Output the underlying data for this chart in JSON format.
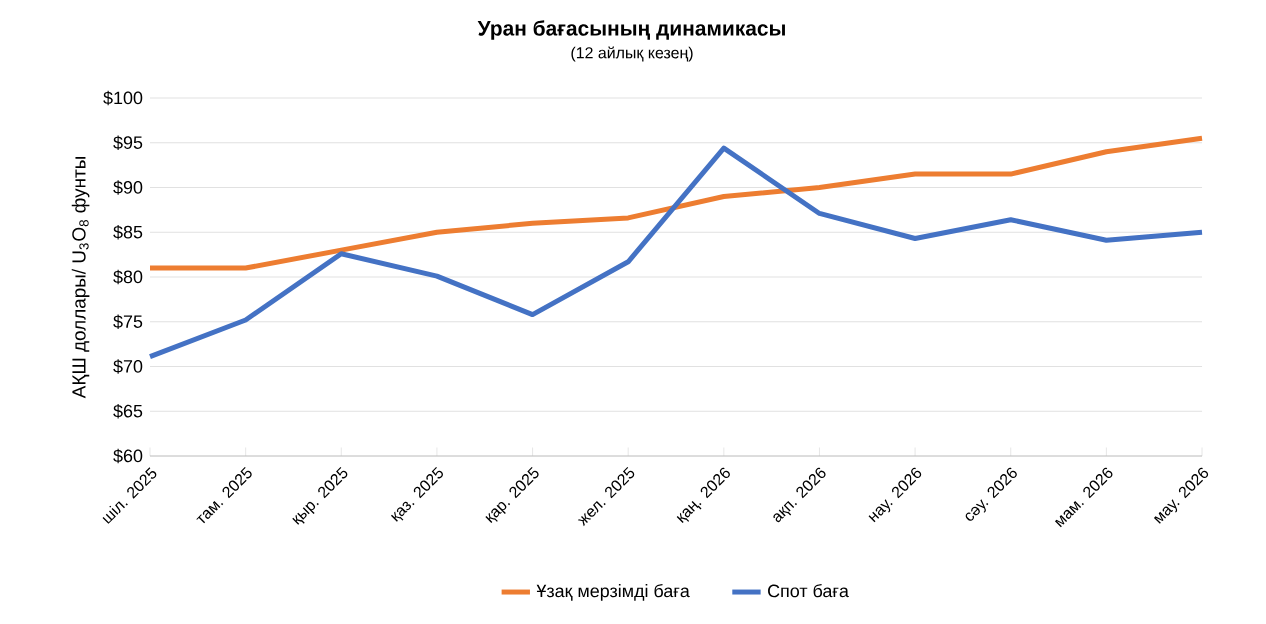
{
  "chart_data": {
    "type": "line",
    "title": "Уран бағасының динамикасы",
    "subtitle": "(12 айлық кезең)",
    "ylabel": "АҚШ доллары/ U$_{3}$O$_{8}$ фунты",
    "categories": [
      "шіл. 2025",
      "там. 2025",
      "қыр. 2025",
      "қаз. 2025",
      "қар. 2025",
      "жел. 2025",
      "қаң. 2026",
      "ақп. 2026",
      "нау. 2026",
      "сәу. 2026",
      "мам. 2026",
      "мау. 2026"
    ],
    "series": [
      {
        "name": "Ұзақ мерзімді баға",
        "color": "#ed7d31",
        "values": [
          81,
          81,
          83,
          85,
          86,
          86.6,
          89,
          90,
          91.5,
          91.5,
          94,
          95.5
        ]
      },
      {
        "name": "Спот баға",
        "color": "#4472c4",
        "values": [
          71.1,
          75.2,
          82.6,
          80.1,
          75.8,
          81.7,
          94.4,
          87.1,
          84.3,
          86.4,
          84.1,
          85
        ]
      }
    ],
    "ylim": [
      60,
      100
    ],
    "yticks": [
      {
        "value": 60,
        "label": "$60"
      },
      {
        "value": 65,
        "label": "$65"
      },
      {
        "value": 70,
        "label": "$70"
      },
      {
        "value": 75,
        "label": "$75"
      },
      {
        "value": 80,
        "label": "$80"
      },
      {
        "value": 85,
        "label": "$85"
      },
      {
        "value": 90,
        "label": "$90"
      },
      {
        "value": 95,
        "label": "$95"
      },
      {
        "value": 100,
        "label": "$100"
      }
    ],
    "grid": "y",
    "legend": "bottom",
    "marker": "none",
    "line_style": "solid"
  }
}
